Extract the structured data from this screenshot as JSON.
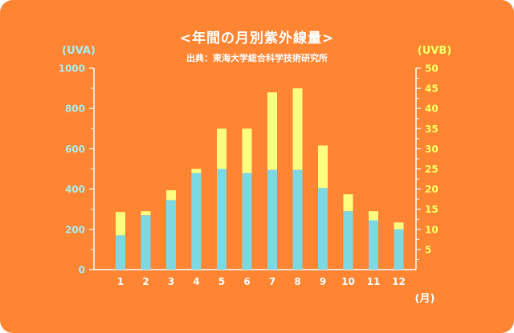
{
  "title": "<年間の月別紫外線量>",
  "source": "出典：東海大学総合科学技術研究所",
  "colors": {
    "background": "#ff8533",
    "uva": "#7ed8e2",
    "uva_light": "#bff2f2",
    "uvb": "#ffff80",
    "axis": "#ffffff",
    "left_axis_text": "#a8ecec",
    "right_axis_text": "#ffff66"
  },
  "chart_data": {
    "type": "bar",
    "categories": [
      "1",
      "2",
      "3",
      "4",
      "5",
      "6",
      "7",
      "8",
      "9",
      "10",
      "11",
      "12"
    ],
    "xlabel": "(月)",
    "y_left": {
      "label": "(UVA)",
      "ylim": [
        0,
        1000
      ],
      "ticks": [
        "0",
        "200",
        "400",
        "600",
        "800",
        "1000"
      ]
    },
    "y_right": {
      "label": "(UVB)",
      "ylim": [
        0,
        50
      ],
      "ticks": [
        "5",
        "10",
        "15",
        "20",
        "25",
        "30",
        "35",
        "40",
        "45",
        "50"
      ]
    },
    "series": [
      {
        "axis": "left",
        "values": [
          170,
          270,
          345,
          480,
          500,
          480,
          495,
          495,
          405,
          290,
          245,
          200
        ]
      },
      {
        "axis": "right",
        "values": [
          14.3,
          14.5,
          19.7,
          25,
          35,
          35,
          44,
          45,
          30.8,
          18.7,
          14.5,
          11.7
        ]
      }
    ]
  }
}
